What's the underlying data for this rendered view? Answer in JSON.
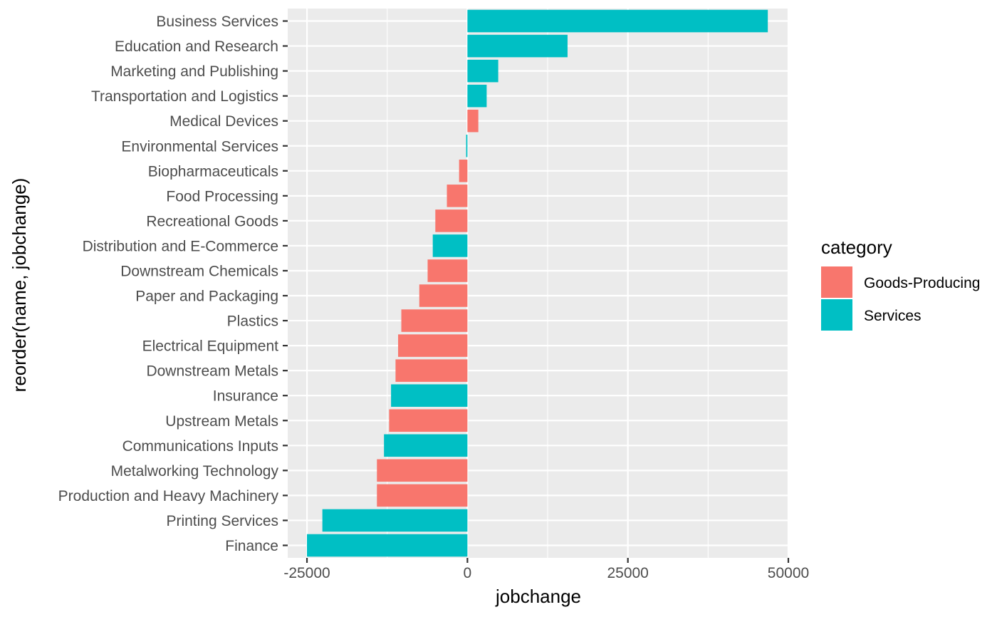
{
  "chart_data": {
    "type": "bar",
    "orientation": "horizontal",
    "xlabel": "jobchange",
    "ylabel": "reorder(name, jobchange)",
    "xlim": [
      -28000,
      50000
    ],
    "x_ticks": [
      -25000,
      0,
      25000,
      50000
    ],
    "x_tick_labels": [
      "-25000",
      "0",
      "25000",
      "50000"
    ],
    "grid": true,
    "legend": {
      "title": "category",
      "position": "right",
      "entries": [
        {
          "label": "Goods-Producing",
          "color": "#F8766D"
        },
        {
          "label": "Services",
          "color": "#00BFC4"
        }
      ]
    },
    "categories": [
      "Business Services",
      "Education and Research",
      "Marketing and Publishing",
      "Transportation and Logistics",
      "Medical Devices",
      "Environmental Services",
      "Biopharmaceuticals",
      "Food Processing",
      "Recreational Goods",
      "Distribution and E-Commerce",
      "Downstream Chemicals",
      "Paper and Packaging",
      "Plastics",
      "Electrical Equipment",
      "Downstream Metals",
      "Insurance",
      "Upstream Metals",
      "Communications Inputs",
      "Metalworking Technology",
      "Production and Heavy Machinery",
      "Printing Services",
      "Finance"
    ],
    "values": [
      46800,
      15600,
      4800,
      3000,
      1700,
      -200,
      -1300,
      -3200,
      -5000,
      -5400,
      -6200,
      -7500,
      -10300,
      -10800,
      -11200,
      -11900,
      -12200,
      -13000,
      -14100,
      -14100,
      -22600,
      -25000
    ],
    "category_of_bar": [
      "Services",
      "Services",
      "Services",
      "Services",
      "Goods-Producing",
      "Services",
      "Goods-Producing",
      "Goods-Producing",
      "Goods-Producing",
      "Services",
      "Goods-Producing",
      "Goods-Producing",
      "Goods-Producing",
      "Goods-Producing",
      "Goods-Producing",
      "Services",
      "Goods-Producing",
      "Services",
      "Goods-Producing",
      "Goods-Producing",
      "Services",
      "Services"
    ]
  },
  "colors": {
    "panel_background": "#EBEBEB",
    "gridline": "#FFFFFF",
    "tick_mark": "#333333"
  }
}
